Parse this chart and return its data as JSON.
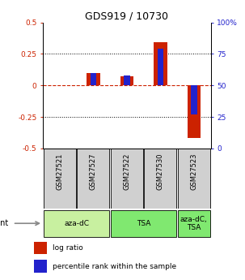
{
  "title": "GDS919 / 10730",
  "samples": [
    "GSM27521",
    "GSM27527",
    "GSM27522",
    "GSM27530",
    "GSM27523"
  ],
  "log_ratios": [
    0.0,
    0.1,
    0.07,
    0.34,
    -0.42
  ],
  "percentile_ranks": [
    50,
    60,
    58,
    79,
    27
  ],
  "agents": [
    {
      "label": "aza-dC",
      "span": [
        0,
        2
      ],
      "color": "#c8f0a0"
    },
    {
      "label": "TSA",
      "span": [
        2,
        4
      ],
      "color": "#80e870"
    },
    {
      "label": "aza-dC,\nTSA",
      "span": [
        4,
        5
      ],
      "color": "#80e870"
    }
  ],
  "ylim": [
    -0.5,
    0.5
  ],
  "yticks": [
    -0.5,
    -0.25,
    0.0,
    0.25,
    0.5
  ],
  "ytick_labels": [
    "-0.5",
    "-0.25",
    "0",
    "0.25",
    "0.5"
  ],
  "right_yticks": [
    0,
    25,
    50,
    75,
    100
  ],
  "right_yticklabels": [
    "0",
    "25",
    "50",
    "75",
    "100%"
  ],
  "bar_color_red": "#cc2200",
  "bar_color_blue": "#2222cc",
  "bar_width": 0.4,
  "percentile_bar_width": 0.18,
  "background_color": "#ffffff",
  "title_color": "#000000",
  "left_axis_color": "#cc2200",
  "right_axis_color": "#2222cc",
  "legend_red_label": "log ratio",
  "legend_blue_label": "percentile rank within the sample",
  "sample_label_fontsize": 6.0,
  "agent_label_fontsize": 6.5
}
